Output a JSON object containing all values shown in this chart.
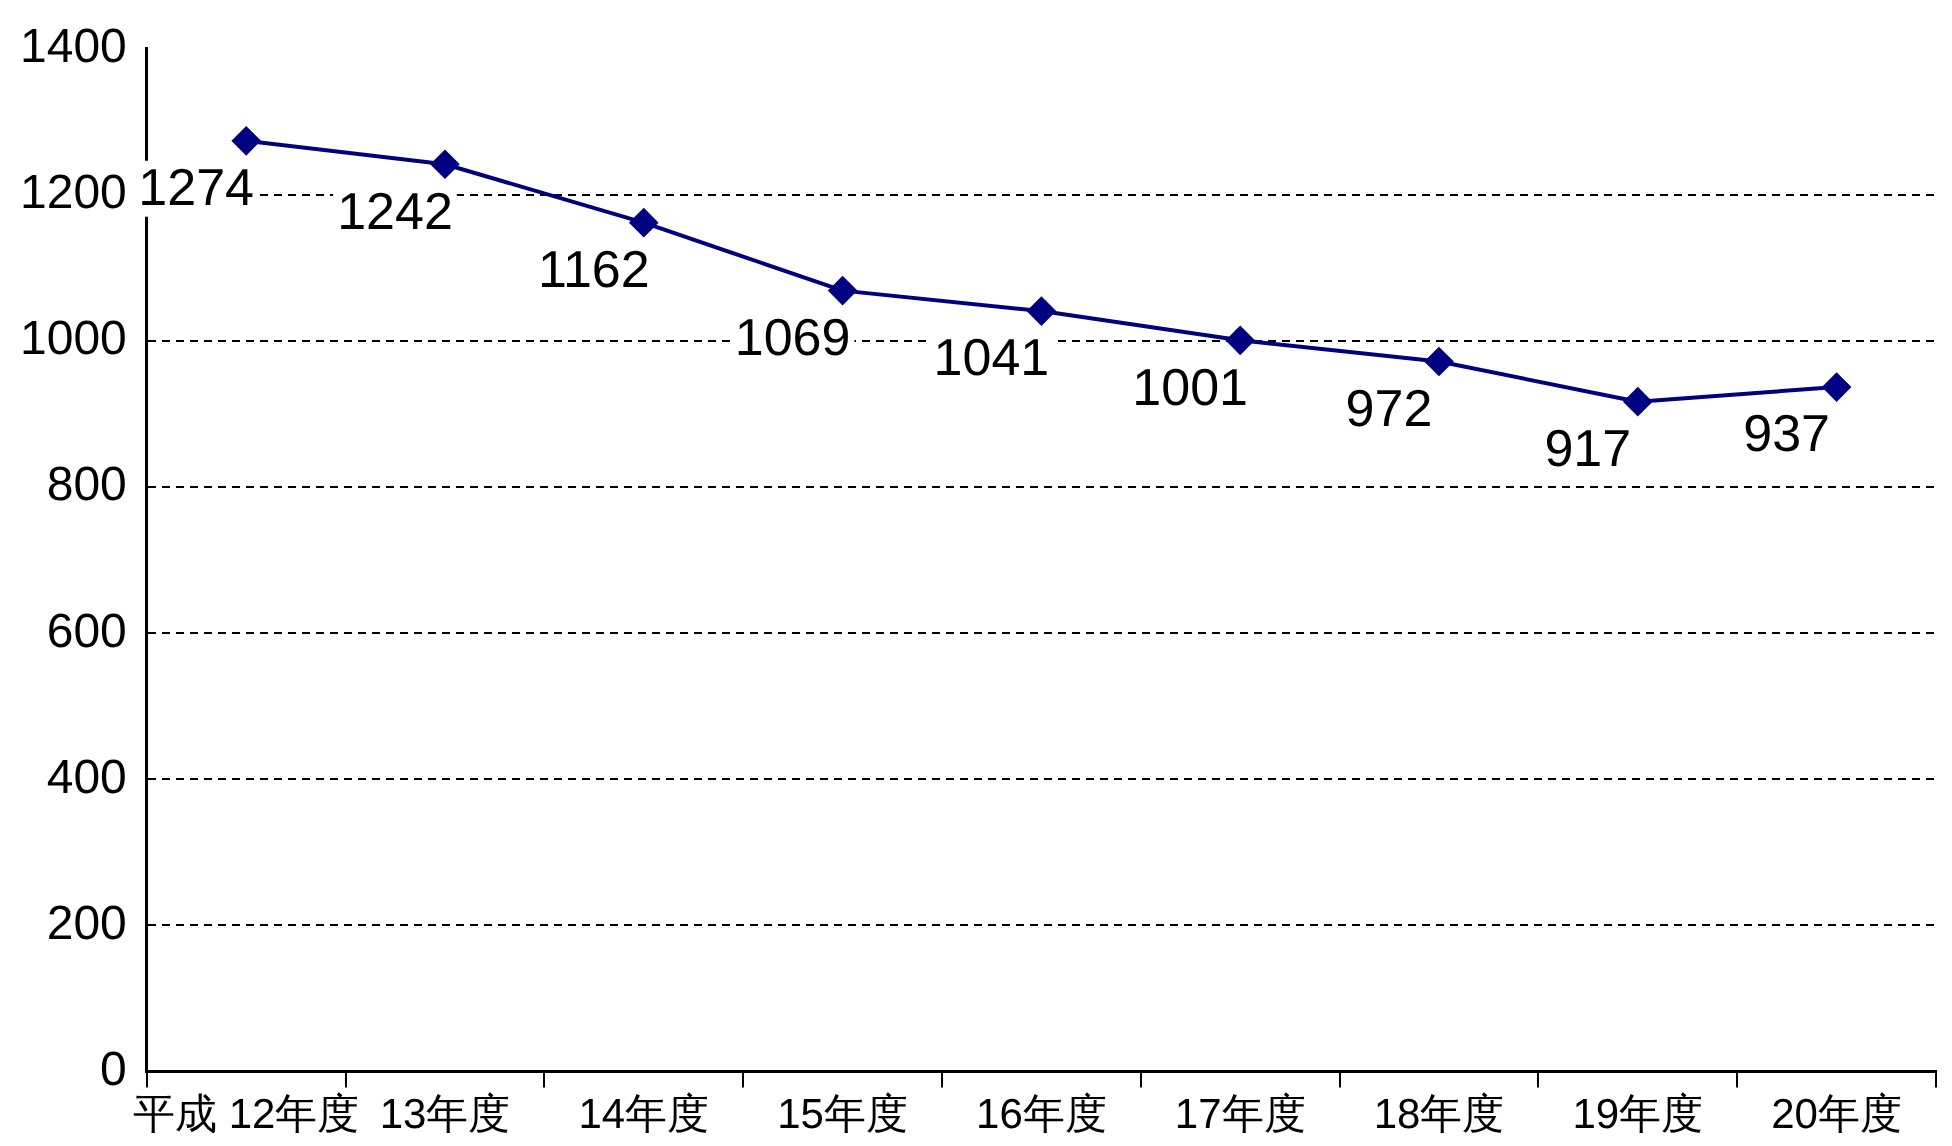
{
  "chart_data": {
    "type": "line",
    "categories": [
      "平成 12年度",
      "13年度",
      "14年度",
      "15年度",
      "16年度",
      "17年度",
      "18年度",
      "19年度",
      "20年度"
    ],
    "series": [
      {
        "color": "#000080",
        "values": [
          1274,
          1242,
          1162,
          1069,
          1041,
          1001,
          972,
          917,
          937
        ]
      }
    ],
    "ylim": [
      0,
      1400
    ],
    "yticks": [
      0,
      200,
      400,
      600,
      800,
      1000,
      1200,
      1400
    ],
    "grid": "y",
    "legend": false,
    "marker": "diamond",
    "line_style": "solid",
    "data_labels": true
  }
}
